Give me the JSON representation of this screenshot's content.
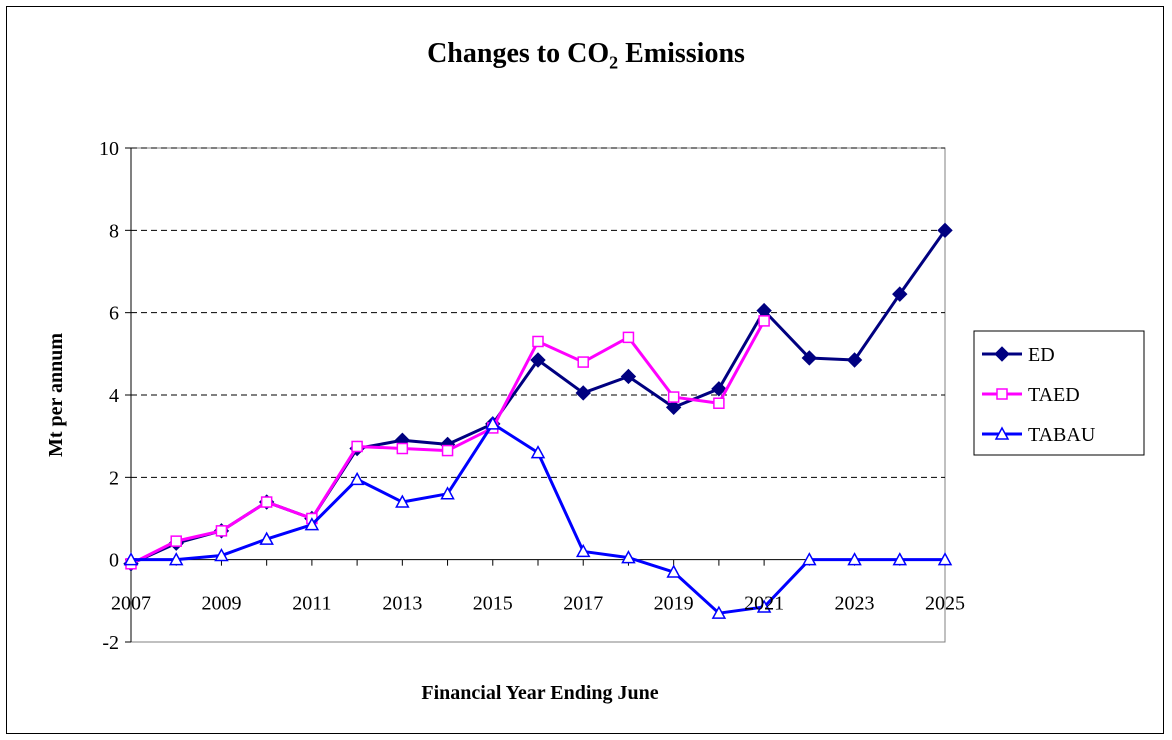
{
  "chart_data": {
    "type": "line",
    "title": {
      "main": "Changes to CO",
      "subscript": "2",
      "rest": " Emissions"
    },
    "xlabel": "Financial Year Ending June",
    "ylabel": "Mt per annum",
    "ylim": [
      -2,
      10
    ],
    "yticks": [
      -2,
      0,
      2,
      4,
      6,
      8,
      10
    ],
    "xlim": [
      2007,
      2025
    ],
    "xticks": [
      2007,
      2009,
      2011,
      2013,
      2015,
      2017,
      2019,
      2021,
      2023,
      2025
    ],
    "grid": "horizontal dashed",
    "legend_position": "right",
    "x": [
      2007,
      2008,
      2009,
      2010,
      2011,
      2012,
      2013,
      2014,
      2015,
      2016,
      2017,
      2018,
      2019,
      2020,
      2021,
      2022,
      2023,
      2024,
      2025
    ],
    "series": [
      {
        "name": "ED",
        "color": "#000080",
        "marker": "diamond-filled",
        "values": [
          -0.1,
          0.4,
          0.7,
          1.4,
          1.0,
          2.7,
          2.9,
          2.8,
          3.3,
          4.85,
          4.05,
          4.45,
          3.7,
          4.15,
          6.05,
          4.9,
          4.85,
          6.45,
          8.0
        ]
      },
      {
        "name": "TAED",
        "color": "#ff00ff",
        "marker": "square-open",
        "values": [
          -0.1,
          0.45,
          0.7,
          1.4,
          1.0,
          2.75,
          2.7,
          2.65,
          3.2,
          5.3,
          4.8,
          5.4,
          3.95,
          3.8,
          5.8,
          null,
          null,
          null,
          null
        ]
      },
      {
        "name": "TABAU",
        "color": "#0000ff",
        "marker": "triangle-open",
        "values": [
          0.0,
          0.0,
          0.1,
          0.5,
          0.85,
          1.95,
          1.4,
          1.6,
          3.3,
          2.6,
          0.2,
          0.05,
          -0.3,
          -1.3,
          -1.15,
          0.0,
          0.0,
          0.0,
          0.0
        ]
      }
    ]
  }
}
